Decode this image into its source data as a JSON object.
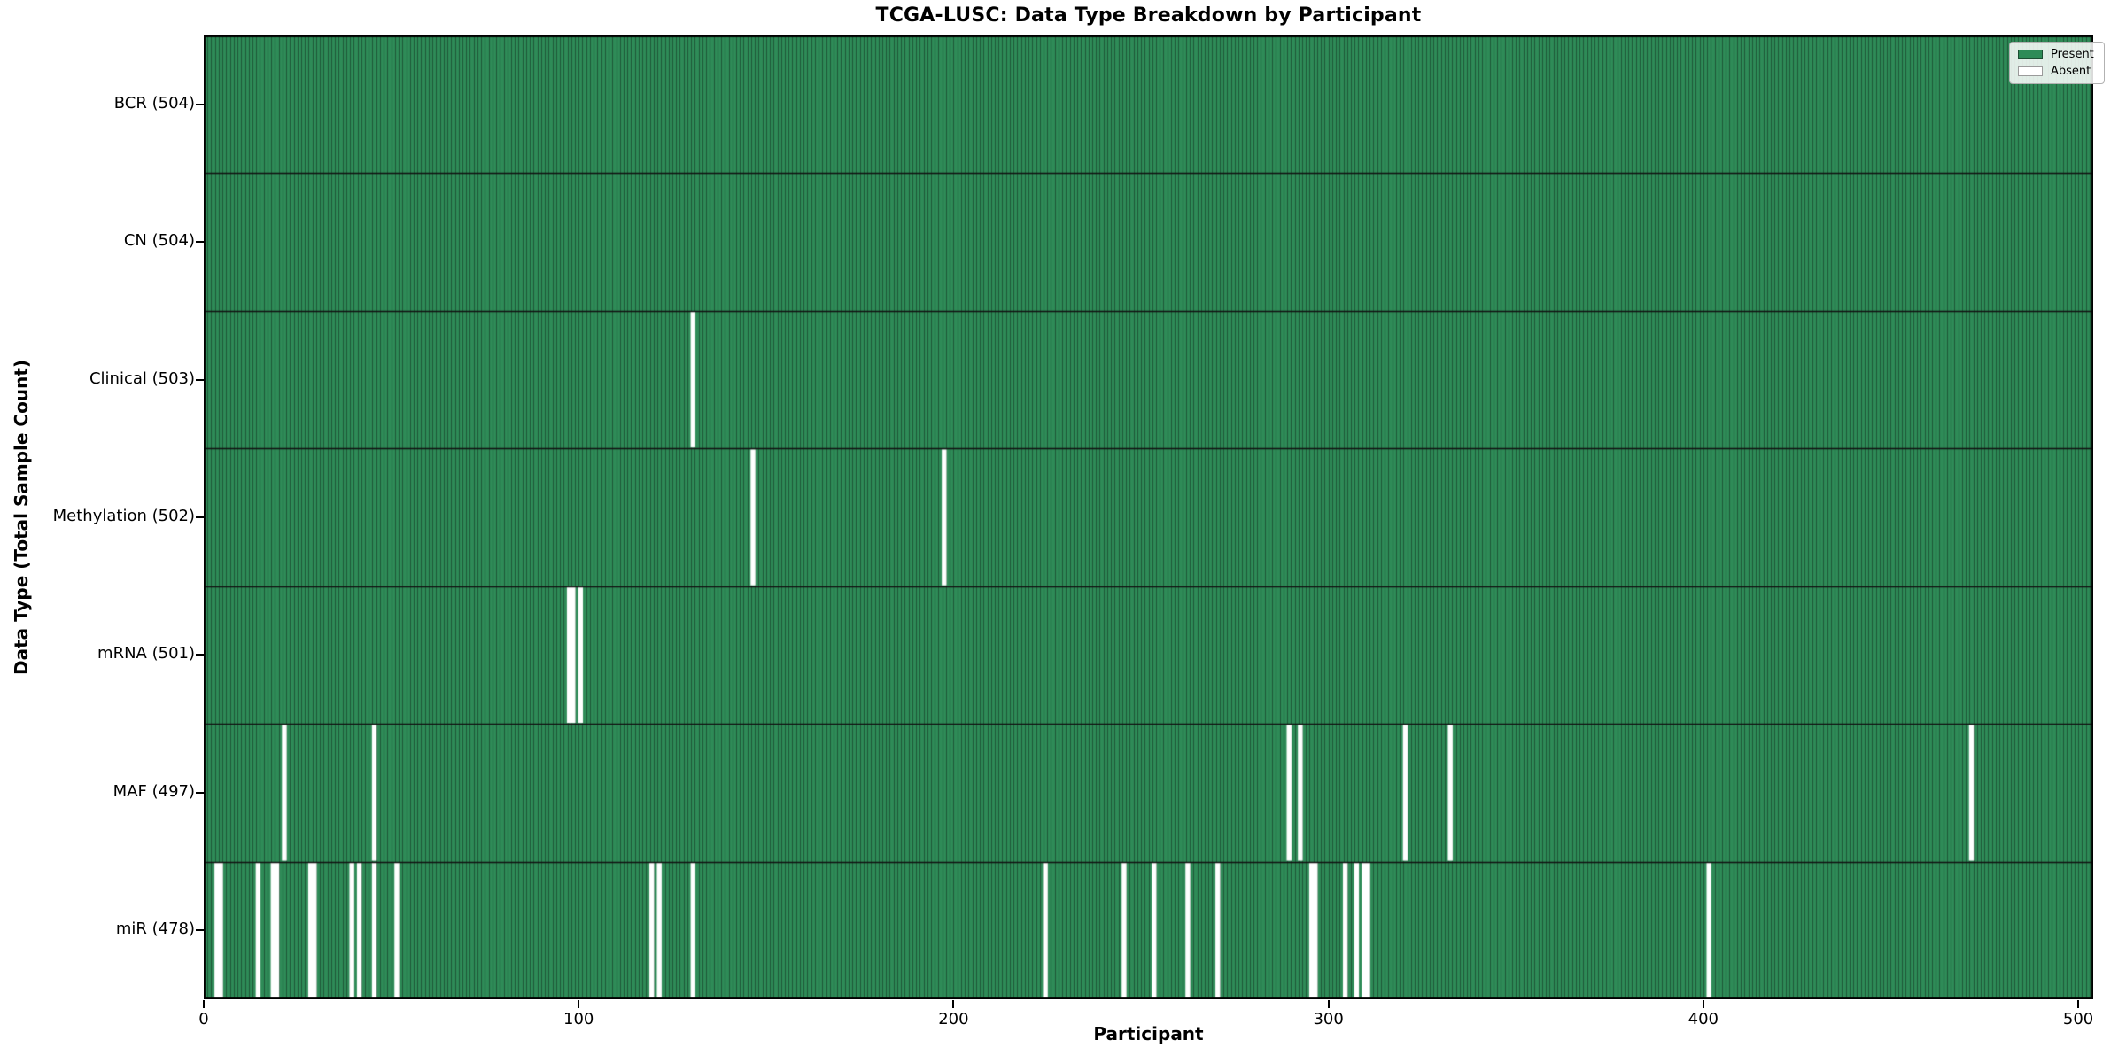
{
  "chart_data": {
    "type": "heatmap",
    "title": "TCGA-LUSC: Data Type Breakdown by Participant",
    "xlabel": "Participant",
    "ylabel": "Data Type (Total Sample Count)",
    "n_participants": 504,
    "x_ticks": [
      0,
      100,
      200,
      300,
      400,
      500
    ],
    "xlim": [
      0,
      504
    ],
    "grid": false,
    "legend": {
      "position": "upper right",
      "entries": [
        {
          "label": "Present",
          "color": "#2e8b57"
        },
        {
          "label": "Absent",
          "color": "#ffffff"
        }
      ]
    },
    "colors": {
      "present": "#2e8b57",
      "absent": "#ffffff",
      "bar_edge": "#1c4e32",
      "row_separator": "#111111",
      "plot_border": "#000000",
      "background": "#ffffff"
    },
    "rows": [
      {
        "label": "BCR (504)",
        "data_type": "BCR",
        "total": 504,
        "absent_participants": []
      },
      {
        "label": "CN (504)",
        "data_type": "CN",
        "total": 504,
        "absent_participants": []
      },
      {
        "label": "Clinical (503)",
        "data_type": "Clinical",
        "total": 503,
        "absent_participants": [
          130
        ]
      },
      {
        "label": "Methylation (502)",
        "data_type": "Methylation",
        "total": 502,
        "absent_participants": [
          146,
          197
        ]
      },
      {
        "label": "mRNA (501)",
        "data_type": "mRNA",
        "total": 501,
        "absent_participants": [
          97,
          98,
          100
        ]
      },
      {
        "label": "MAF (497)",
        "data_type": "MAF",
        "total": 497,
        "absent_participants": [
          21,
          45,
          289,
          292,
          320,
          332,
          471
        ]
      },
      {
        "label": "miR (478)",
        "data_type": "miR",
        "total": 478,
        "absent_participants": [
          3,
          4,
          14,
          18,
          19,
          28,
          29,
          39,
          41,
          45,
          51,
          119,
          121,
          130,
          224,
          245,
          253,
          262,
          270,
          295,
          296,
          304,
          307,
          309,
          310,
          401
        ]
      }
    ]
  }
}
